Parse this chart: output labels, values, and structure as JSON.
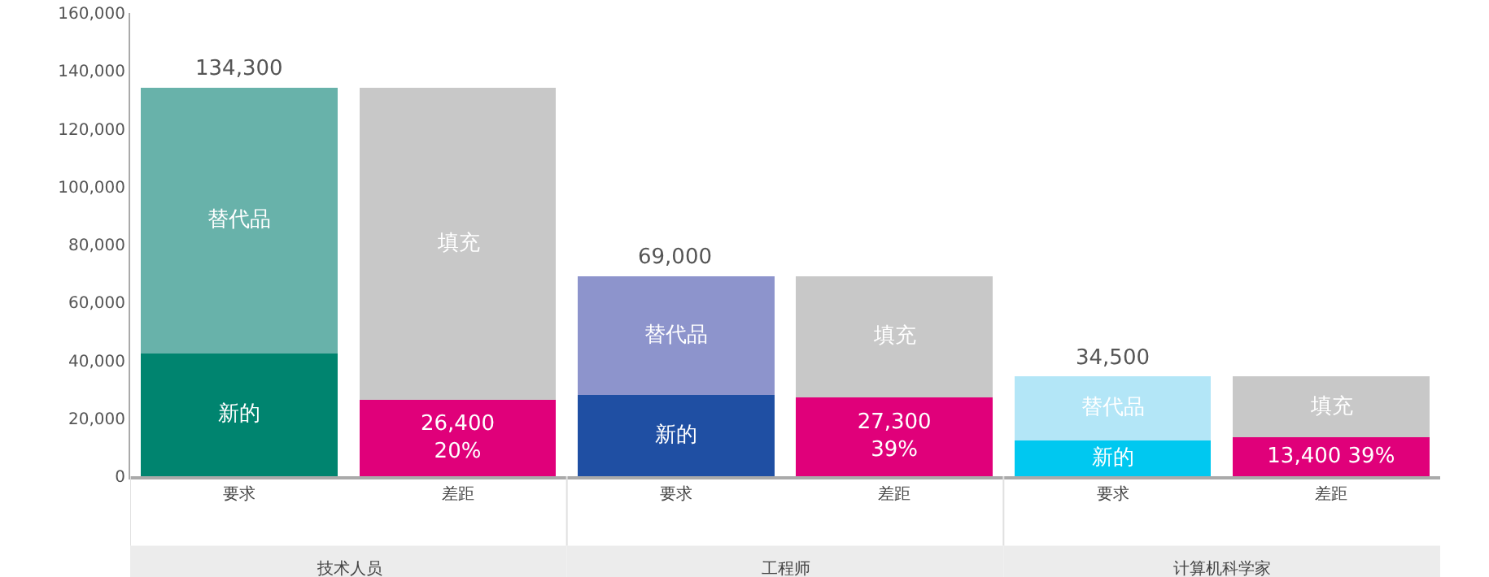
{
  "chart_data": {
    "type": "bar",
    "stacked": true,
    "categories": [
      "要求",
      "差距",
      "要求",
      "差距",
      "要求",
      "差距"
    ],
    "series": [
      {
        "name": "新的",
        "colors": [
          "#00846f",
          null,
          "#1f4fa3",
          null,
          "#00c8f0",
          null
        ],
        "values": [
          42500,
          null,
          28000,
          null,
          12400,
          null
        ]
      },
      {
        "name": "替代品",
        "colors": [
          "#68b2aa",
          null,
          "#8d94cc",
          null,
          "#b3e6f7",
          null
        ],
        "values": [
          91800,
          null,
          41000,
          null,
          22100,
          null
        ]
      },
      {
        "color": "#e0007a",
        "values": [
          null,
          26400,
          null,
          27300,
          null,
          13400
        ],
        "value_labels": [
          null,
          "26,400\n20%",
          null,
          "27,300\n39%",
          null,
          "13,400 39%"
        ]
      },
      {
        "name": "填充",
        "color": "#c8c8c8",
        "values": [
          null,
          107900,
          null,
          41700,
          null,
          21100
        ]
      }
    ],
    "totals": [
      "134,300",
      null,
      "69,000",
      null,
      "34,500",
      null
    ],
    "annotations": [
      "技术人员",
      "工程师",
      "计算机科学家"
    ],
    "ylim": [
      0,
      160000
    ],
    "yticks": [
      0,
      {
        "value": 20000,
        "label": "20,000"
      },
      {
        "value": 40000,
        "label": "40,000"
      },
      {
        "value": 60000,
        "label": "60,000"
      },
      {
        "value": 80000,
        "label": "80,000"
      },
      {
        "value": 100000,
        "label": "100,000"
      },
      {
        "value": 120000,
        "label": "120,000"
      },
      {
        "value": 140000,
        "label": "140,000"
      },
      {
        "value": 160000,
        "label": "160,000"
      }
    ],
    "grid": false,
    "legend": false
  }
}
